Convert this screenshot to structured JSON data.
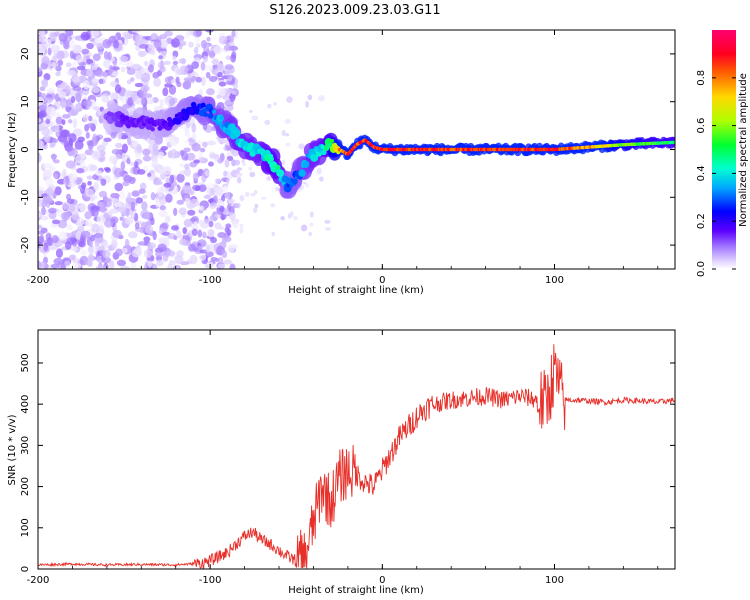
{
  "title": "S126.2023.009.23.03.G11",
  "colors": {
    "snr_line": "#e8302a",
    "noise_purple": "#8a3cff",
    "track_red": "#e8001c",
    "colormap": [
      "#ffffff",
      "#d9c8ff",
      "#9a6cff",
      "#5b00ff",
      "#0000ff",
      "#00a8ff",
      "#00ffd0",
      "#00ff30",
      "#b0ff00",
      "#ffd800",
      "#ff6000",
      "#ff0020",
      "#ff0070"
    ]
  },
  "chart_data": [
    {
      "type": "heatmap",
      "xlabel": "Height of straight line (km)",
      "ylabel": "Frequency (Hz)",
      "xlim": [
        -200,
        170
      ],
      "ylim": [
        -25,
        25
      ],
      "xticks": [
        -200,
        -100,
        0,
        100
      ],
      "xtick_labels": [
        "-200",
        "-100",
        "0",
        "100"
      ],
      "yticks": [
        -20,
        -10,
        0,
        10,
        20
      ],
      "ytick_labels": [
        "-20",
        "-10",
        "0",
        "10",
        "20"
      ],
      "colorbar": {
        "label": "Normalized spectral amplitude",
        "range": [
          0,
          1
        ],
        "ticks": [
          0.0,
          0.2,
          0.4,
          0.6,
          0.8
        ],
        "tick_labels": [
          "0.0",
          "0.2",
          "0.4",
          "0.6",
          "0.8"
        ]
      },
      "frequency_track": {
        "x": [
          -160,
          -150,
          -140,
          -130,
          -120,
          -110,
          -100,
          -95,
          -90,
          -85,
          -80,
          -75,
          -70,
          -65,
          -60,
          -55,
          -50,
          -45,
          -40,
          -35,
          -30,
          -25,
          -20,
          -15,
          -10,
          -5,
          0,
          10,
          20,
          40,
          60,
          80,
          100,
          120,
          140,
          170
        ],
        "y": [
          7,
          6,
          5.5,
          5,
          6,
          9,
          8,
          6,
          5,
          3,
          1,
          0,
          -1,
          -2,
          -5,
          -8,
          -6,
          -3,
          -1,
          0,
          1,
          0,
          -1,
          1,
          2,
          0.5,
          0,
          0,
          0,
          0,
          0,
          0,
          0,
          0.5,
          1,
          1.5
        ],
        "amplitude": [
          0.2,
          0.25,
          0.25,
          0.25,
          0.3,
          0.35,
          0.4,
          0.45,
          0.45,
          0.5,
          0.5,
          0.5,
          0.5,
          0.55,
          0.55,
          0.4,
          0.4,
          0.45,
          0.5,
          0.5,
          0.6,
          0.85,
          0.95,
          0.95,
          0.95,
          0.95,
          0.95,
          0.95,
          0.95,
          0.95,
          0.95,
          0.95,
          0.95,
          0.85,
          0.7,
          0.6
        ]
      }
    },
    {
      "type": "line",
      "xlabel": "Height of straight line (km)",
      "ylabel": "SNR (10 * v/v)",
      "xlim": [
        -200,
        170
      ],
      "ylim": [
        0,
        580
      ],
      "xticks": [
        -200,
        -100,
        0,
        100
      ],
      "xtick_labels": [
        "-200",
        "-100",
        "0",
        "100"
      ],
      "yticks": [
        0,
        100,
        200,
        300,
        400,
        500
      ],
      "ytick_labels": [
        "0",
        "100",
        "200",
        "300",
        "400",
        "500"
      ],
      "series": [
        {
          "x": [
            -200,
            -180,
            -160,
            -140,
            -120,
            -105,
            -100,
            -95,
            -90,
            -85,
            -80,
            -75,
            -70,
            -65,
            -60,
            -55,
            -50,
            -45,
            -40,
            -35,
            -30,
            -25,
            -20,
            -15,
            -10,
            -5,
            0,
            5,
            10,
            15,
            20,
            25,
            30,
            40,
            50,
            60,
            70,
            80,
            90,
            95,
            100,
            105,
            110,
            120,
            130,
            140,
            150,
            160,
            170
          ],
          "y": [
            10,
            12,
            10,
            11,
            10,
            14,
            20,
            30,
            40,
            60,
            80,
            90,
            70,
            60,
            45,
            30,
            20,
            30,
            110,
            200,
            160,
            220,
            240,
            230,
            210,
            200,
            240,
            280,
            320,
            345,
            370,
            390,
            400,
            410,
            415,
            420,
            410,
            420,
            410,
            400,
            480,
            410,
            410,
            408,
            405,
            410,
            408,
            405,
            410
          ]
        }
      ]
    }
  ]
}
